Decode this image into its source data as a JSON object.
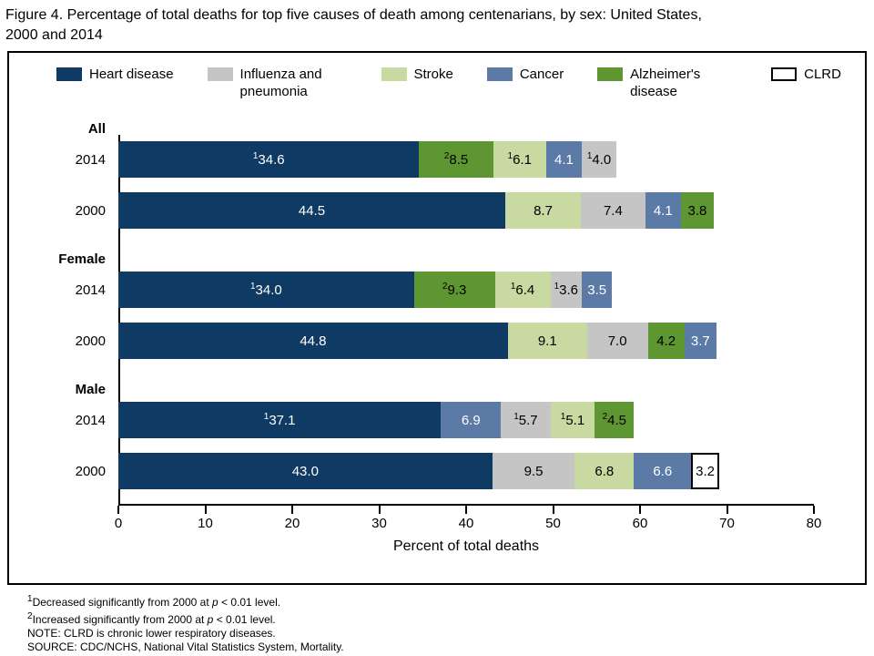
{
  "figure": {
    "title_lines": [
      "Figure 4. Percentage of total deaths for top five causes of death among centenarians, by sex: United States,",
      "2000 and 2014"
    ]
  },
  "legend": {
    "items": [
      "Heart disease",
      "Influenza and pneumonia",
      "Stroke",
      "Cancer",
      "Alzheimer's disease",
      "CLRD"
    ]
  },
  "chart_data": {
    "type": "bar",
    "orientation": "horizontal",
    "stacked": true,
    "title": "Figure 4. Percentage of total deaths for top five causes of death among centenarians, by sex: United States, 2000 and 2014",
    "xlabel": "Percent of total deaths",
    "xlim": [
      0,
      80
    ],
    "xticks": [
      0,
      10,
      20,
      30,
      40,
      50,
      60,
      70,
      80
    ],
    "legend_position": "top",
    "colors": {
      "Heart disease": {
        "fill": "#0e3a64",
        "text": "#ffffff"
      },
      "Influenza and pneumonia": {
        "fill": "#c5c5c5",
        "text": "#000000"
      },
      "Stroke": {
        "fill": "#c8d9a2",
        "text": "#000000"
      },
      "Cancer": {
        "fill": "#5b7aa6",
        "text": "#ffffff"
      },
      "Alzheimer's disease": {
        "fill": "#5e9632",
        "text": "#000000"
      },
      "CLRD": {
        "fill": "#ffffff",
        "text": "#000000",
        "border": "#000000"
      }
    },
    "groups": [
      {
        "group": "All",
        "rows": [
          {
            "year": "2014",
            "segments": [
              {
                "cause": "Heart disease",
                "value": 34.6,
                "label": "34.6",
                "sup": "1"
              },
              {
                "cause": "Alzheimer's disease",
                "value": 8.5,
                "label": "8.5",
                "sup": "2"
              },
              {
                "cause": "Stroke",
                "value": 6.1,
                "label": "6.1",
                "sup": "1"
              },
              {
                "cause": "Cancer",
                "value": 4.1,
                "label": "4.1",
                "sup": ""
              },
              {
                "cause": "Influenza and pneumonia",
                "value": 4.0,
                "label": "4.0",
                "sup": "1"
              }
            ]
          },
          {
            "year": "2000",
            "segments": [
              {
                "cause": "Heart disease",
                "value": 44.5,
                "label": "44.5",
                "sup": ""
              },
              {
                "cause": "Stroke",
                "value": 8.7,
                "label": "8.7",
                "sup": ""
              },
              {
                "cause": "Influenza and pneumonia",
                "value": 7.4,
                "label": "7.4",
                "sup": ""
              },
              {
                "cause": "Cancer",
                "value": 4.1,
                "label": "4.1",
                "sup": ""
              },
              {
                "cause": "Alzheimer's disease",
                "value": 3.8,
                "label": "3.8",
                "sup": ""
              }
            ]
          }
        ]
      },
      {
        "group": "Female",
        "rows": [
          {
            "year": "2014",
            "segments": [
              {
                "cause": "Heart disease",
                "value": 34.0,
                "label": "34.0",
                "sup": "1"
              },
              {
                "cause": "Alzheimer's disease",
                "value": 9.3,
                "label": "9.3",
                "sup": "2"
              },
              {
                "cause": "Stroke",
                "value": 6.4,
                "label": "6.4",
                "sup": "1"
              },
              {
                "cause": "Influenza and pneumonia",
                "value": 3.6,
                "label": "3.6",
                "sup": "1"
              },
              {
                "cause": "Cancer",
                "value": 3.5,
                "label": "3.5",
                "sup": ""
              }
            ]
          },
          {
            "year": "2000",
            "segments": [
              {
                "cause": "Heart disease",
                "value": 44.8,
                "label": "44.8",
                "sup": ""
              },
              {
                "cause": "Stroke",
                "value": 9.1,
                "label": "9.1",
                "sup": ""
              },
              {
                "cause": "Influenza and pneumonia",
                "value": 7.0,
                "label": "7.0",
                "sup": ""
              },
              {
                "cause": "Alzheimer's disease",
                "value": 4.2,
                "label": "4.2",
                "sup": ""
              },
              {
                "cause": "Cancer",
                "value": 3.7,
                "label": "3.7",
                "sup": ""
              }
            ]
          }
        ]
      },
      {
        "group": "Male",
        "rows": [
          {
            "year": "2014",
            "segments": [
              {
                "cause": "Heart disease",
                "value": 37.1,
                "label": "37.1",
                "sup": "1"
              },
              {
                "cause": "Cancer",
                "value": 6.9,
                "label": "6.9",
                "sup": ""
              },
              {
                "cause": "Influenza and pneumonia",
                "value": 5.7,
                "label": "5.7",
                "sup": "1"
              },
              {
                "cause": "Stroke",
                "value": 5.1,
                "label": "5.1",
                "sup": "1"
              },
              {
                "cause": "Alzheimer's disease",
                "value": 4.5,
                "label": "4.5",
                "sup": "2"
              }
            ]
          },
          {
            "year": "2000",
            "segments": [
              {
                "cause": "Heart disease",
                "value": 43.0,
                "label": "43.0",
                "sup": ""
              },
              {
                "cause": "Influenza and pneumonia",
                "value": 9.5,
                "label": "9.5",
                "sup": ""
              },
              {
                "cause": "Stroke",
                "value": 6.8,
                "label": "6.8",
                "sup": ""
              },
              {
                "cause": "Cancer",
                "value": 6.6,
                "label": "6.6",
                "sup": ""
              },
              {
                "cause": "CLRD",
                "value": 3.2,
                "label": "3.2",
                "sup": ""
              }
            ]
          }
        ]
      }
    ]
  },
  "footnotes": [
    {
      "sup": "1",
      "pre": "Decreased significantly from 2000 at ",
      "italic": "p",
      "post": " < 0.01 level."
    },
    {
      "sup": "2",
      "pre": "Increased significantly from 2000 at ",
      "italic": "p",
      "post": " < 0.01 level."
    },
    {
      "sup": "",
      "pre": "NOTE: CLRD is chronic lower respiratory diseases.",
      "italic": "",
      "post": ""
    },
    {
      "sup": "",
      "pre": "SOURCE: CDC/NCHS, National Vital Statistics System, Mortality.",
      "italic": "",
      "post": ""
    }
  ]
}
